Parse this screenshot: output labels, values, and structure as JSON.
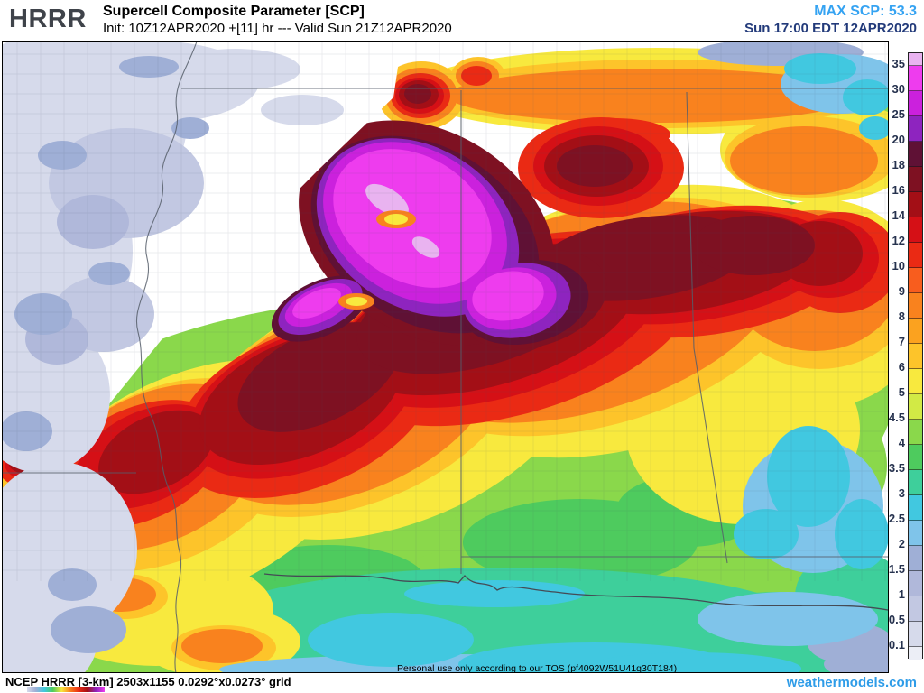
{
  "header": {
    "logo": "HRRR",
    "title": "Supercell Composite Parameter [SCP]",
    "init_line": "Init: 10Z12APR2020 +[11] hr --- Valid Sun 21Z12APR2020",
    "max_label": "MAX SCP: 53.3",
    "valid_local": "Sun 17:00 EDT 12APR2020"
  },
  "legend": {
    "values": [
      "35",
      "30",
      "25",
      "20",
      "18",
      "16",
      "14",
      "12",
      "10",
      "9",
      "8",
      "7",
      "6",
      "5",
      "4.5",
      "4",
      "3.5",
      "3",
      "2.5",
      "2",
      "1.5",
      "1",
      "0.5",
      "0.1"
    ],
    "colors": [
      "#e9b3f0",
      "#ee3cee",
      "#cb21dd",
      "#8e24bf",
      "#5f1135",
      "#7e1122",
      "#a30f16",
      "#d51016",
      "#ea2a14",
      "#f85d1e",
      "#f9821e",
      "#fba21f",
      "#fdc42a",
      "#f8e93e",
      "#d2ea45",
      "#8ad84b",
      "#4ecb5e",
      "#3ecf9b",
      "#41c8e0",
      "#7fc4ea",
      "#9fafd6",
      "#b0b8da",
      "#c2c8e2",
      "#d6daeb",
      "#eceef6"
    ]
  },
  "footer": {
    "grid_info": "NCEP HRRR [3-km] 2503x1155 0.0292°x0.0273° grid",
    "tos": "Personal use only according to our TOS (pf4092W51U41q30T184)",
    "watermark": "weathermodels.com"
  },
  "colors": {
    "accent_blue": "#35a3f2",
    "valid_time": "#223a7a",
    "watermark": "#2e9ce8",
    "logo": "#3f434a"
  }
}
